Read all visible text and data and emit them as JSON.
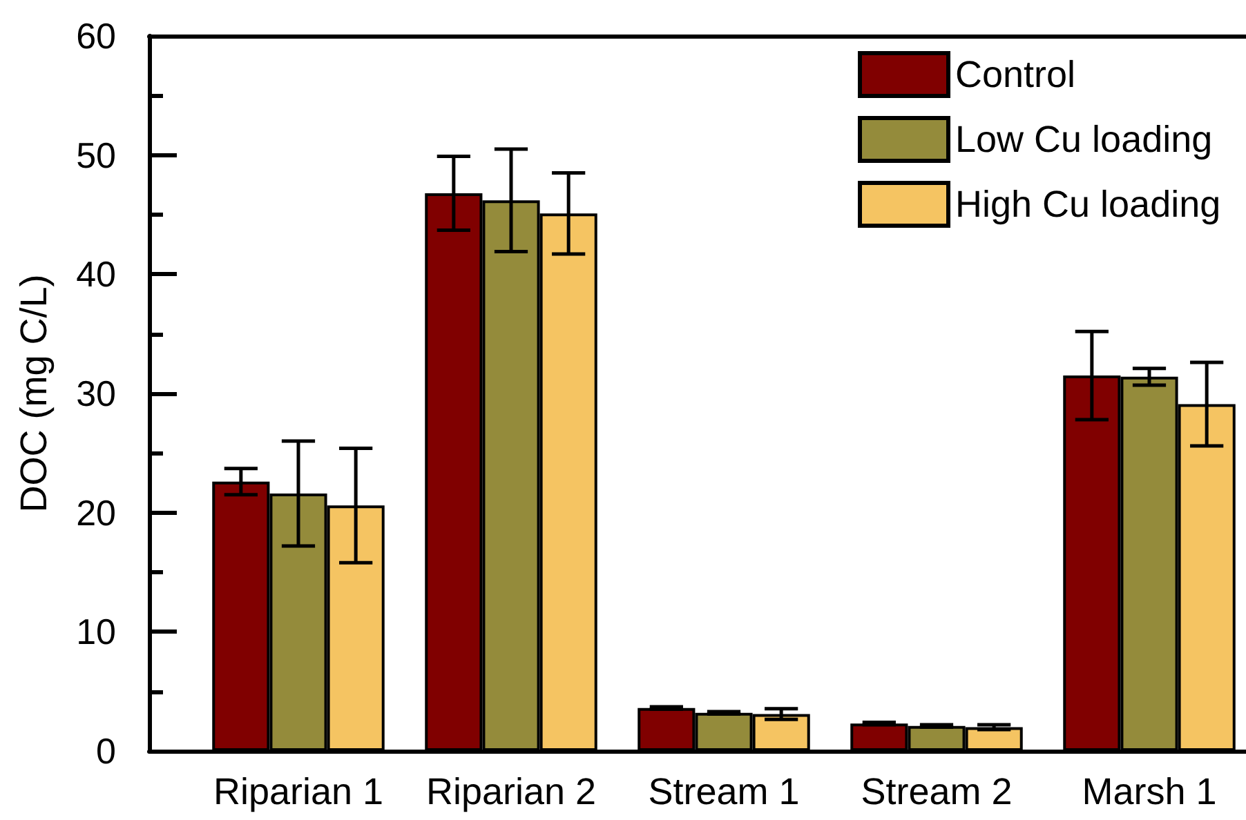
{
  "chart_data": {
    "type": "bar",
    "ylabel": "DOC (mg C/L)",
    "categories": [
      "Riparian 1",
      "Riparian 2",
      "Stream 1",
      "Stream 2",
      "Marsh 1"
    ],
    "series": [
      {
        "name": "Control",
        "color": "#800000",
        "values": [
          22.6,
          46.8,
          3.6,
          2.3,
          31.5
        ],
        "errors": [
          1.1,
          3.1,
          0.1,
          0.1,
          3.7
        ]
      },
      {
        "name": "Low Cu loading",
        "color": "#948b3b",
        "values": [
          21.6,
          46.2,
          3.2,
          2.1,
          31.4
        ],
        "errors": [
          4.4,
          4.3,
          0.1,
          0.1,
          0.7
        ]
      },
      {
        "name": "High Cu loading",
        "color": "#f5c462",
        "values": [
          20.6,
          45.1,
          3.1,
          2.0,
          29.1
        ],
        "errors": [
          4.8,
          3.4,
          0.45,
          0.2,
          3.5
        ]
      }
    ],
    "ylim": [
      0,
      60
    ],
    "yticks": [
      0,
      {
        "value": 5,
        "label": null
      },
      10,
      {
        "value": 15,
        "label": null
      },
      20,
      {
        "value": 25,
        "label": null
      },
      30,
      {
        "value": 35,
        "label": null
      },
      40,
      {
        "value": 45,
        "label": null
      },
      50,
      {
        "value": 55,
        "label": null
      },
      60
    ],
    "legend": "top right"
  }
}
